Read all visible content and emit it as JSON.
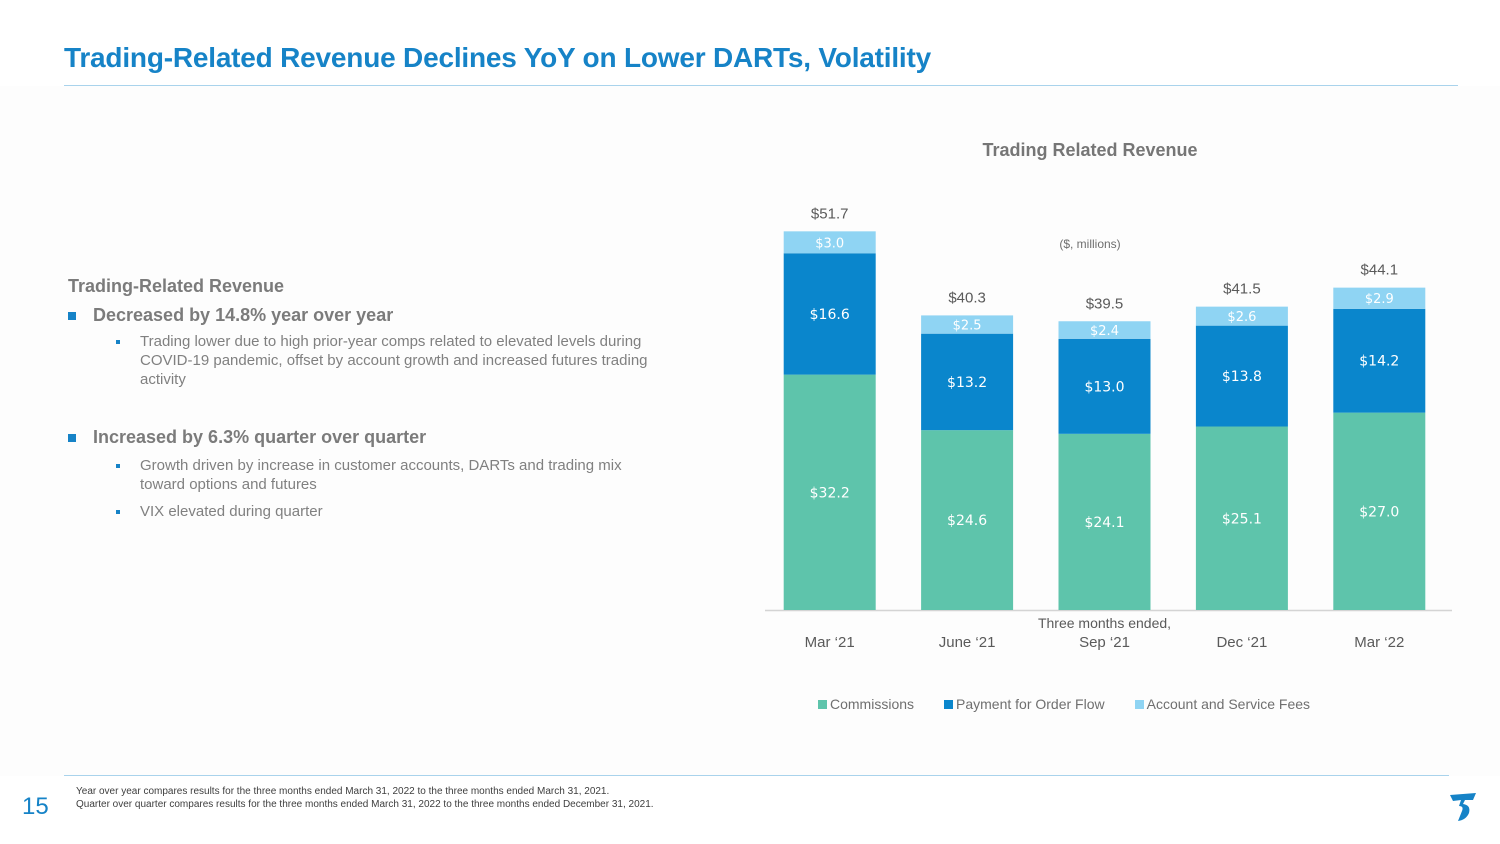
{
  "slide": {
    "title": "Trading-Related Revenue Declines YoY on Lower DARTs, Volatility",
    "page_number": "15",
    "footnotes": [
      "Year over year compares results for the three months ended March 31, 2022 to the three months ended March 31, 2021.",
      "Quarter over quarter compares results for the three months ended March 31, 2022 to the three months ended December 31, 2021."
    ],
    "logo_icon": "brand-t-logo"
  },
  "summary": {
    "heading": "Trading-Related Revenue",
    "points": [
      {
        "label": "Decreased by 14.8% year over year",
        "sub": [
          "Trading lower due to high prior-year comps related to elevated levels during COVID-19 pandemic, offset by account growth and increased futures trading activity"
        ]
      },
      {
        "label": "Increased by 6.3% quarter over quarter",
        "sub": [
          "Growth driven by increase in customer accounts, DARTs and trading mix toward options and futures",
          "VIX elevated during quarter"
        ]
      }
    ]
  },
  "chart_data": {
    "type": "bar",
    "stacked": true,
    "title": "Trading Related Revenue",
    "subtitle": "($, millions)",
    "xlabel": "Three months ended,",
    "ylabel": "",
    "categories": [
      "Mar ‘21",
      "June ‘21",
      "Sep ‘21",
      "Dec ‘21",
      "Mar ‘22"
    ],
    "series": [
      {
        "name": "Commissions",
        "color": "#5ec4ab",
        "values": [
          32.2,
          24.6,
          24.1,
          25.1,
          27.0
        ],
        "labels": [
          "$32.2",
          "$24.6",
          "$24.1",
          "$25.1",
          "$27.0"
        ]
      },
      {
        "name": "Payment for Order Flow",
        "color": "#0a86cc",
        "values": [
          16.6,
          13.2,
          13.0,
          13.8,
          14.2
        ],
        "labels": [
          "$16.6",
          "$13.2",
          "$13.0",
          "$13.8",
          "$14.2"
        ]
      },
      {
        "name": "Account and Service Fees",
        "color": "#8fd4f3",
        "values": [
          3.0,
          2.5,
          2.4,
          2.6,
          2.9
        ],
        "labels": [
          "$3.0",
          "$2.5",
          "$2.4",
          "$2.6",
          "$2.9"
        ]
      }
    ],
    "totals": [
      51.7,
      40.3,
      39.5,
      41.5,
      44.1
    ],
    "total_labels": [
      "$51.7",
      "$40.3",
      "$39.5",
      "$41.5",
      "$44.1"
    ],
    "ylim": [
      0,
      52
    ],
    "grid": false,
    "legend": "bottom"
  }
}
